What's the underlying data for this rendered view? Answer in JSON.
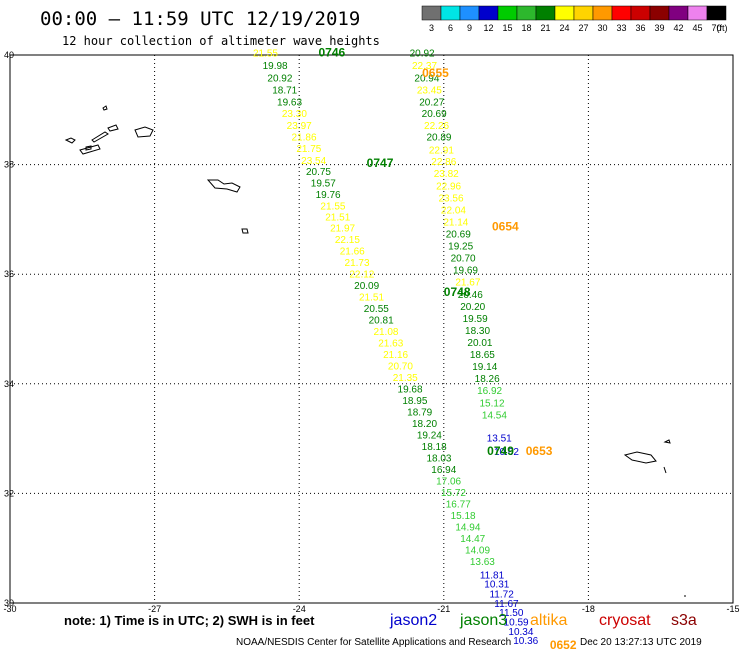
{
  "header": {
    "title": "00:00 – 11:59 UTC 12/19/2019",
    "subtitle": "12 hour collection of altimeter wave heights"
  },
  "legend": {
    "unit": "(ft)",
    "bins": [
      {
        "label": "3",
        "color": "#707070"
      },
      {
        "label": "6",
        "color": "#00e5e5"
      },
      {
        "label": "9",
        "color": "#1e90ff"
      },
      {
        "label": "12",
        "color": "#0000cc"
      },
      {
        "label": "15",
        "color": "#00cc00"
      },
      {
        "label": "18",
        "color": "#2db82d"
      },
      {
        "label": "21",
        "color": "#008000"
      },
      {
        "label": "24",
        "color": "#ffff00"
      },
      {
        "label": "27",
        "color": "#ffd400"
      },
      {
        "label": "30",
        "color": "#ff9900"
      },
      {
        "label": "33",
        "color": "#ff0000"
      },
      {
        "label": "36",
        "color": "#cc0000"
      },
      {
        "label": "39",
        "color": "#8b0000"
      },
      {
        "label": "42",
        "color": "#800080"
      },
      {
        "label": "45",
        "color": "#ee82ee"
      },
      {
        "label": "70",
        "color": "#000000"
      }
    ]
  },
  "axes": {
    "lon_ticks": [
      -30,
      -27,
      -24,
      -21,
      -18,
      -15
    ],
    "lat_ticks": [
      30,
      32,
      34,
      36,
      38,
      40
    ],
    "lon_range": [
      -30,
      -15
    ],
    "lat_range": [
      30,
      40
    ]
  },
  "colors": {
    "jason2": "#0000cc",
    "jason3": "#008000",
    "altika": "#ff9900",
    "cryosat": "#cc0000",
    "s3a": "#8b0000",
    "yellow_band": "#ffff00",
    "light_green": "#33cc33"
  },
  "tracks": [
    {
      "id": "west",
      "points": [
        {
          "lon": -24.7,
          "lat": 39.97,
          "v": "21.55",
          "c": "#ffff00"
        },
        {
          "lon": -24.5,
          "lat": 39.74,
          "v": "19.98",
          "c": "#008000"
        },
        {
          "lon": -24.4,
          "lat": 39.52,
          "v": "20.92",
          "c": "#008000"
        },
        {
          "lon": -24.3,
          "lat": 39.3,
          "v": "18.71",
          "c": "#008000"
        },
        {
          "lon": -24.2,
          "lat": 39.08,
          "v": "19.63",
          "c": "#008000"
        },
        {
          "lon": -24.1,
          "lat": 38.87,
          "v": "23.30",
          "c": "#ffff00"
        },
        {
          "lon": -24.0,
          "lat": 38.65,
          "v": "23.97",
          "c": "#ffff00"
        },
        {
          "lon": -23.9,
          "lat": 38.44,
          "v": "21.86",
          "c": "#ffff00"
        },
        {
          "lon": -23.8,
          "lat": 38.23,
          "v": "21.75",
          "c": "#ffff00"
        },
        {
          "lon": -23.7,
          "lat": 38.01,
          "v": "23.54",
          "c": "#ffff00"
        },
        {
          "lon": -23.6,
          "lat": 37.81,
          "v": "20.75",
          "c": "#008000"
        },
        {
          "lon": -23.5,
          "lat": 37.6,
          "v": "19.57",
          "c": "#008000"
        },
        {
          "lon": -23.4,
          "lat": 37.39,
          "v": "19.76",
          "c": "#008000"
        },
        {
          "lon": -23.3,
          "lat": 37.18,
          "v": "21.55",
          "c": "#ffff00"
        },
        {
          "lon": -23.2,
          "lat": 36.98,
          "v": "21.51",
          "c": "#ffff00"
        },
        {
          "lon": -23.1,
          "lat": 36.78,
          "v": "21.97",
          "c": "#ffff00"
        },
        {
          "lon": -23.0,
          "lat": 36.57,
          "v": "22.15",
          "c": "#ffff00"
        },
        {
          "lon": -22.9,
          "lat": 36.36,
          "v": "21.66",
          "c": "#ffff00"
        },
        {
          "lon": -22.8,
          "lat": 36.15,
          "v": "21.73",
          "c": "#ffff00"
        },
        {
          "lon": -22.7,
          "lat": 35.94,
          "v": "22.12",
          "c": "#ffff00"
        },
        {
          "lon": -22.6,
          "lat": 35.73,
          "v": "20.09",
          "c": "#008000"
        },
        {
          "lon": -22.5,
          "lat": 35.52,
          "v": "21.51",
          "c": "#ffff00"
        },
        {
          "lon": -22.4,
          "lat": 35.31,
          "v": "20.55",
          "c": "#008000"
        },
        {
          "lon": -22.3,
          "lat": 35.1,
          "v": "20.81",
          "c": "#008000"
        },
        {
          "lon": -22.2,
          "lat": 34.89,
          "v": "21.08",
          "c": "#ffff00"
        },
        {
          "lon": -22.1,
          "lat": 34.68,
          "v": "21.63",
          "c": "#ffff00"
        },
        {
          "lon": -22.0,
          "lat": 34.47,
          "v": "21.16",
          "c": "#ffff00"
        },
        {
          "lon": -21.9,
          "lat": 34.26,
          "v": "20.70",
          "c": "#ffff00"
        },
        {
          "lon": -21.8,
          "lat": 34.05,
          "v": "21.35",
          "c": "#ffff00"
        },
        {
          "lon": -21.7,
          "lat": 33.84,
          "v": "19.68",
          "c": "#008000"
        },
        {
          "lon": -21.6,
          "lat": 33.63,
          "v": "18.95",
          "c": "#008000"
        },
        {
          "lon": -21.5,
          "lat": 33.42,
          "v": "18.79",
          "c": "#008000"
        },
        {
          "lon": -21.4,
          "lat": 33.21,
          "v": "18.20",
          "c": "#008000"
        },
        {
          "lon": -21.3,
          "lat": 33.0,
          "v": "19.24",
          "c": "#008000"
        },
        {
          "lon": -21.2,
          "lat": 32.79,
          "v": "18.18",
          "c": "#008000"
        },
        {
          "lon": -21.1,
          "lat": 32.58,
          "v": "18.03",
          "c": "#008000"
        },
        {
          "lon": -21.0,
          "lat": 32.37,
          "v": "16.94",
          "c": "#008000"
        },
        {
          "lon": -20.9,
          "lat": 32.16,
          "v": "17.06",
          "c": "#33cc33"
        },
        {
          "lon": -20.8,
          "lat": 31.95,
          "v": "15.72",
          "c": "#33cc33"
        },
        {
          "lon": -20.7,
          "lat": 31.74,
          "v": "16.77",
          "c": "#33cc33"
        },
        {
          "lon": -20.6,
          "lat": 31.53,
          "v": "15.18",
          "c": "#33cc33"
        },
        {
          "lon": -20.5,
          "lat": 31.32,
          "v": "14.94",
          "c": "#33cc33"
        },
        {
          "lon": -20.4,
          "lat": 31.11,
          "v": "14.47",
          "c": "#33cc33"
        },
        {
          "lon": -20.3,
          "lat": 30.9,
          "v": "14.09",
          "c": "#33cc33"
        },
        {
          "lon": -20.2,
          "lat": 30.69,
          "v": "13.63",
          "c": "#33cc33"
        },
        {
          "lon": -20.0,
          "lat": 30.45,
          "v": "11.81",
          "c": "#0000cc"
        },
        {
          "lon": -19.9,
          "lat": 30.28,
          "v": "10.31",
          "c": "#0000cc"
        },
        {
          "lon": -19.8,
          "lat": 30.1,
          "v": "11.72",
          "c": "#0000cc"
        },
        {
          "lon": -19.7,
          "lat": 29.93,
          "v": "11.67",
          "c": "#0000cc"
        },
        {
          "lon": -19.6,
          "lat": 29.76,
          "v": "11.50",
          "c": "#0000cc"
        },
        {
          "lon": -19.5,
          "lat": 29.59,
          "v": "10.59",
          "c": "#0000cc"
        },
        {
          "lon": -19.4,
          "lat": 29.42,
          "v": "10.34",
          "c": "#0000cc"
        },
        {
          "lon": -19.3,
          "lat": 29.25,
          "v": "10.36",
          "c": "#0000cc"
        }
      ]
    },
    {
      "id": "east",
      "points": [
        {
          "lon": -21.45,
          "lat": 39.97,
          "v": "20.92",
          "c": "#008000"
        },
        {
          "lon": -21.4,
          "lat": 39.74,
          "v": "22.37",
          "c": "#ffff00"
        },
        {
          "lon": -21.35,
          "lat": 39.52,
          "v": "20.94",
          "c": "#008000"
        },
        {
          "lon": -21.3,
          "lat": 39.3,
          "v": "23.45",
          "c": "#ffff00"
        },
        {
          "lon": -21.25,
          "lat": 39.08,
          "v": "20.27",
          "c": "#008000"
        },
        {
          "lon": -21.2,
          "lat": 38.87,
          "v": "20.69",
          "c": "#008000"
        },
        {
          "lon": -21.15,
          "lat": 38.65,
          "v": "22.26",
          "c": "#ffff00"
        },
        {
          "lon": -21.1,
          "lat": 38.44,
          "v": "20.89",
          "c": "#008000"
        },
        {
          "lon": -21.05,
          "lat": 38.2,
          "v": "22.91",
          "c": "#ffff00"
        },
        {
          "lon": -21.0,
          "lat": 37.99,
          "v": "22.86",
          "c": "#ffff00"
        },
        {
          "lon": -20.95,
          "lat": 37.77,
          "v": "23.82",
          "c": "#ffff00"
        },
        {
          "lon": -20.9,
          "lat": 37.55,
          "v": "22.96",
          "c": "#ffff00"
        },
        {
          "lon": -20.85,
          "lat": 37.33,
          "v": "23.56",
          "c": "#ffff00"
        },
        {
          "lon": -20.8,
          "lat": 37.11,
          "v": "22.04",
          "c": "#ffff00"
        },
        {
          "lon": -20.75,
          "lat": 36.89,
          "v": "21.14",
          "c": "#ffff00"
        },
        {
          "lon": -20.7,
          "lat": 36.67,
          "v": "20.69",
          "c": "#008000"
        },
        {
          "lon": -20.65,
          "lat": 36.45,
          "v": "19.25",
          "c": "#008000"
        },
        {
          "lon": -20.6,
          "lat": 36.23,
          "v": "20.70",
          "c": "#008000"
        },
        {
          "lon": -20.55,
          "lat": 36.01,
          "v": "19.69",
          "c": "#008000"
        },
        {
          "lon": -20.5,
          "lat": 35.79,
          "v": "21.67",
          "c": "#ffff00"
        },
        {
          "lon": -20.45,
          "lat": 35.57,
          "v": "20.46",
          "c": "#008000"
        },
        {
          "lon": -20.4,
          "lat": 35.35,
          "v": "20.20",
          "c": "#008000"
        },
        {
          "lon": -20.35,
          "lat": 35.13,
          "v": "19.59",
          "c": "#008000"
        },
        {
          "lon": -20.3,
          "lat": 34.91,
          "v": "18.30",
          "c": "#008000"
        },
        {
          "lon": -20.25,
          "lat": 34.69,
          "v": "20.01",
          "c": "#008000"
        },
        {
          "lon": -20.2,
          "lat": 34.47,
          "v": "18.65",
          "c": "#008000"
        },
        {
          "lon": -20.15,
          "lat": 34.25,
          "v": "19.14",
          "c": "#008000"
        },
        {
          "lon": -20.1,
          "lat": 34.03,
          "v": "18.26",
          "c": "#008000"
        },
        {
          "lon": -20.05,
          "lat": 33.81,
          "v": "16.92",
          "c": "#33cc33"
        },
        {
          "lon": -20.0,
          "lat": 33.59,
          "v": "15.12",
          "c": "#33cc33"
        },
        {
          "lon": -19.95,
          "lat": 33.37,
          "v": "14.54",
          "c": "#33cc33"
        },
        {
          "lon": -19.85,
          "lat": 32.95,
          "v": "13.51",
          "c": "#0000cc"
        },
        {
          "lon": -19.7,
          "lat": 32.7,
          "v": "10.62",
          "c": "#0000cc"
        }
      ]
    }
  ],
  "time_labels": [
    {
      "lon": -23.6,
      "lat": 39.97,
      "text": "0746",
      "color": "#008000"
    },
    {
      "lon": -21.45,
      "lat": 39.6,
      "text": "0655",
      "color": "#ff9900"
    },
    {
      "lon": -22.6,
      "lat": 37.96,
      "text": "0747",
      "color": "#008000"
    },
    {
      "lon": -20.0,
      "lat": 36.8,
      "text": "0654",
      "color": "#ff9900"
    },
    {
      "lon": -21.0,
      "lat": 35.6,
      "text": "0748",
      "color": "#008000"
    },
    {
      "lon": -20.1,
      "lat": 32.7,
      "text": "0749",
      "color": "#008000"
    },
    {
      "lon": -19.3,
      "lat": 32.7,
      "text": "0653",
      "color": "#ff9900"
    },
    {
      "lon": -18.8,
      "lat": 29.16,
      "text": "0652",
      "color": "#ff9900"
    }
  ],
  "footer": {
    "note": "note:  1) Time is in UTC;  2) SWH is in feet",
    "sat_jason2": "jason2",
    "sat_jason3": "jason3",
    "sat_altika": "altika",
    "sat_cryosat": "cryosat",
    "sat_s3a": "s3a",
    "credit": "NOAA/NESDIS Center for Satellite Applications and Research",
    "timestamp": "Dec 20 13:27:13 UTC 2019"
  }
}
